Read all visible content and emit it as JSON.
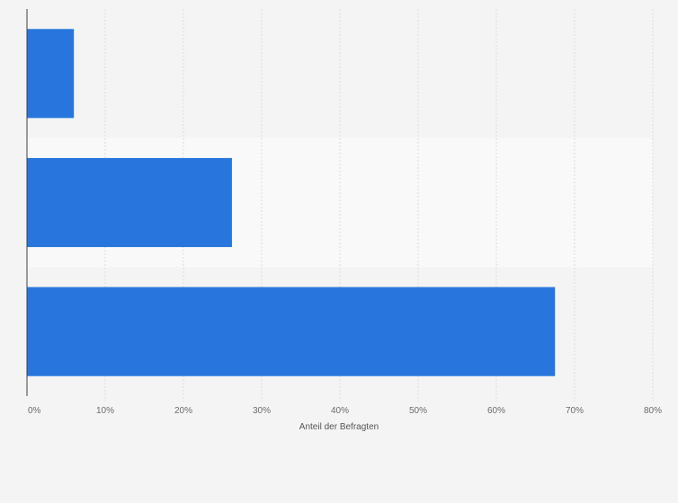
{
  "colors": {
    "background": "#f4f4f4",
    "band_light": "#f9f9f9",
    "bar": "#2876dd",
    "grid": "#dcdcdc",
    "axis": "#404040"
  },
  "chart_data": {
    "type": "bar",
    "orientation": "horizontal",
    "categories": [
      "",
      "",
      ""
    ],
    "values": [
      6,
      26.2,
      67.5
    ],
    "x_ticks": [
      "0%",
      "10%",
      "20%",
      "30%",
      "40%",
      "50%",
      "60%",
      "70%",
      "80%"
    ],
    "xlabel": "Anteil der Befragten",
    "ylabel": "",
    "xlim": [
      0,
      80
    ],
    "unit": "%",
    "grid": true,
    "legend": "none"
  }
}
